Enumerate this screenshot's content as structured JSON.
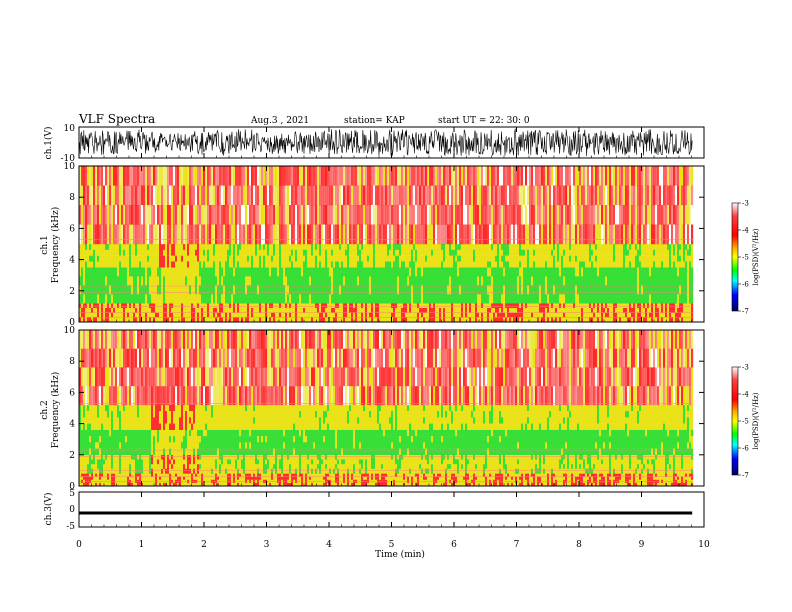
{
  "header": {
    "title": "VLF Spectra",
    "date": "Aug.3 , 2021",
    "station": "station= KAP",
    "start_ut": "start UT = 22: 30: 0"
  },
  "chart_data": [
    {
      "type": "line",
      "panel": "ch1-waveform",
      "ylabel": "ch.1(V)",
      "ylim": [
        -10,
        10
      ],
      "yticks": [
        "10",
        "-10"
      ],
      "x": [
        0,
        0.5,
        1.0,
        1.5,
        2.0,
        2.5,
        3.0,
        3.5,
        4.0,
        4.5,
        5.0,
        5.5,
        6.0,
        6.5,
        7.0,
        7.5,
        8.0,
        8.5,
        9.0,
        9.5,
        9.82
      ],
      "envelope_max": [
        9,
        8,
        9,
        6,
        8,
        9,
        8,
        7,
        9,
        8,
        9,
        8,
        9,
        8,
        9,
        8,
        9,
        8,
        9,
        8,
        9
      ],
      "envelope_min": [
        -9,
        -8,
        -8,
        -6,
        -8,
        -9,
        -8,
        -7,
        -9,
        -8,
        -9,
        -8,
        -9,
        -8,
        -9,
        -8,
        -9,
        -8,
        -9,
        -8,
        -8
      ]
    },
    {
      "type": "heatmap",
      "panel": "ch1-spectrogram",
      "ylabel": "ch.1\nFrequency (kHz)",
      "ylim": [
        0,
        10
      ],
      "yticks": [
        "0",
        "2",
        "4",
        "6",
        "8",
        "10"
      ],
      "time_min": [
        0,
        1.2,
        1.9,
        4.2,
        4.6,
        9.82
      ],
      "bands_khz": [
        {
          "from": 0,
          "to": 1.2,
          "level": -3.5
        },
        {
          "from": 1.2,
          "to": 3.5,
          "level": -5.0
        },
        {
          "from": 3.5,
          "to": 5.0,
          "level": -4.3
        },
        {
          "from": 5.0,
          "to": 10,
          "level": -3.2
        }
      ],
      "colorbar": {
        "label": "log(PSD)(V²/Hz)",
        "range": [
          -7,
          -3
        ],
        "ticks": [
          "-3",
          "-4",
          "-5",
          "-6",
          "-7"
        ]
      }
    },
    {
      "type": "heatmap",
      "panel": "ch2-spectrogram",
      "ylabel": "ch.2\nFrequency (kHz)",
      "ylim": [
        0,
        10
      ],
      "yticks": [
        "0",
        "2",
        "4",
        "6",
        "8",
        "10"
      ],
      "bands_khz": [
        {
          "from": 0,
          "to": 0.8,
          "level": -3.5
        },
        {
          "from": 0.8,
          "to": 2.0,
          "level": -4.4
        },
        {
          "from": 2.0,
          "to": 3.6,
          "level": -5.1
        },
        {
          "from": 3.6,
          "to": 5.2,
          "level": -4.2
        },
        {
          "from": 5.2,
          "to": 10,
          "level": -3.2
        }
      ],
      "colorbar": {
        "label": "log(PSD)(V²/Hz)",
        "range": [
          -7,
          -3
        ],
        "ticks": [
          "-3",
          "-4",
          "-5",
          "-6",
          "-7"
        ]
      }
    },
    {
      "type": "line",
      "panel": "ch3-waveform",
      "ylabel": "ch.3(V)",
      "ylim": [
        -5,
        5
      ],
      "yticks": [
        "5",
        "0",
        "-5"
      ],
      "x": [
        0,
        9.82
      ],
      "envelope_max": [
        -0.7,
        -0.7
      ],
      "envelope_min": [
        -1.3,
        -1.3
      ]
    }
  ],
  "xaxis": {
    "label": "Time (min)",
    "range": [
      0,
      10
    ],
    "ticks": [
      "0",
      "1",
      "2",
      "3",
      "4",
      "5",
      "6",
      "7",
      "8",
      "9",
      "10"
    ]
  },
  "colors": {
    "red": "#ff1a1a",
    "yellow": "#e8e000",
    "green": "#22dd22",
    "black": "#000000"
  }
}
